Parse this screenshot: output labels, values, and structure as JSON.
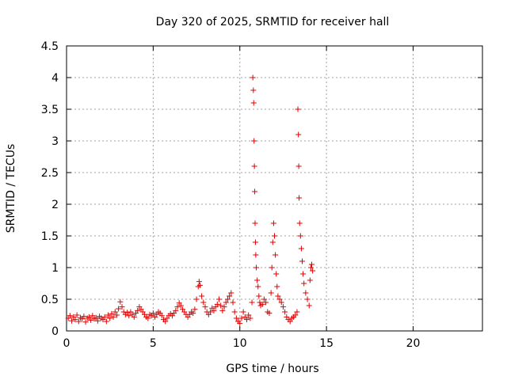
{
  "chart_data": {
    "type": "scatter",
    "title": "Day 320 of 2025, SRMTID for receiver hall",
    "xlabel": "GPS time / hours",
    "ylabel": "SRMTID / TECUs",
    "xlim": [
      0,
      24
    ],
    "ylim": [
      0,
      4.5
    ],
    "x_ticks": [
      0,
      5,
      10,
      15,
      20
    ],
    "x_tick_labels": [
      "0",
      "5",
      "10",
      "15",
      "20"
    ],
    "y_ticks": [
      0,
      0.5,
      1,
      1.5,
      2,
      2.5,
      3,
      3.5,
      4,
      4.5
    ],
    "y_tick_labels": [
      "0",
      "0.5",
      "1",
      "1.5",
      "2",
      "2.5",
      "3",
      "3.5",
      "4",
      "4.5"
    ],
    "grid": true,
    "marker": "+",
    "color": "#e00000",
    "series": [
      {
        "name": "SRMTID",
        "points": [
          [
            0.1,
            0.2
          ],
          [
            0.2,
            0.24
          ],
          [
            0.3,
            0.16
          ],
          [
            0.4,
            0.22
          ],
          [
            0.5,
            0.18
          ],
          [
            0.6,
            0.25
          ],
          [
            0.7,
            0.15
          ],
          [
            0.8,
            0.21
          ],
          [
            0.9,
            0.19
          ],
          [
            1.0,
            0.23
          ],
          [
            1.1,
            0.14
          ],
          [
            1.2,
            0.2
          ],
          [
            1.3,
            0.22
          ],
          [
            1.4,
            0.17
          ],
          [
            1.5,
            0.24
          ],
          [
            1.6,
            0.19
          ],
          [
            1.7,
            0.21
          ],
          [
            1.8,
            0.16
          ],
          [
            1.9,
            0.23
          ],
          [
            2.0,
            0.2
          ],
          [
            2.1,
            0.18
          ],
          [
            2.2,
            0.22
          ],
          [
            2.3,
            0.15
          ],
          [
            2.4,
            0.25
          ],
          [
            2.5,
            0.2
          ],
          [
            2.6,
            0.27
          ],
          [
            2.7,
            0.22
          ],
          [
            2.8,
            0.3
          ],
          [
            2.9,
            0.25
          ],
          [
            3.0,
            0.35
          ],
          [
            3.1,
            0.46
          ],
          [
            3.2,
            0.38
          ],
          [
            3.3,
            0.3
          ],
          [
            3.4,
            0.26
          ],
          [
            3.5,
            0.29
          ],
          [
            3.6,
            0.24
          ],
          [
            3.7,
            0.3
          ],
          [
            3.8,
            0.26
          ],
          [
            3.9,
            0.22
          ],
          [
            4.0,
            0.28
          ],
          [
            4.1,
            0.32
          ],
          [
            4.2,
            0.38
          ],
          [
            4.3,
            0.34
          ],
          [
            4.4,
            0.3
          ],
          [
            4.5,
            0.26
          ],
          [
            4.6,
            0.22
          ],
          [
            4.7,
            0.2
          ],
          [
            4.8,
            0.26
          ],
          [
            4.9,
            0.24
          ],
          [
            5.0,
            0.28
          ],
          [
            5.1,
            0.22
          ],
          [
            5.2,
            0.26
          ],
          [
            5.3,
            0.3
          ],
          [
            5.4,
            0.28
          ],
          [
            5.5,
            0.24
          ],
          [
            5.6,
            0.18
          ],
          [
            5.7,
            0.15
          ],
          [
            5.8,
            0.2
          ],
          [
            5.9,
            0.24
          ],
          [
            6.0,
            0.27
          ],
          [
            6.1,
            0.24
          ],
          [
            6.2,
            0.28
          ],
          [
            6.3,
            0.32
          ],
          [
            6.4,
            0.38
          ],
          [
            6.5,
            0.44
          ],
          [
            6.6,
            0.4
          ],
          [
            6.7,
            0.34
          ],
          [
            6.8,
            0.3
          ],
          [
            6.9,
            0.26
          ],
          [
            7.0,
            0.22
          ],
          [
            7.1,
            0.26
          ],
          [
            7.2,
            0.3
          ],
          [
            7.3,
            0.28
          ],
          [
            7.4,
            0.34
          ],
          [
            7.5,
            0.5
          ],
          [
            7.6,
            0.7
          ],
          [
            7.65,
            0.78
          ],
          [
            7.7,
            0.72
          ],
          [
            7.8,
            0.55
          ],
          [
            7.9,
            0.45
          ],
          [
            8.0,
            0.38
          ],
          [
            8.1,
            0.3
          ],
          [
            8.2,
            0.26
          ],
          [
            8.3,
            0.3
          ],
          [
            8.4,
            0.36
          ],
          [
            8.5,
            0.32
          ],
          [
            8.6,
            0.38
          ],
          [
            8.7,
            0.42
          ],
          [
            8.8,
            0.5
          ],
          [
            8.9,
            0.4
          ],
          [
            9.0,
            0.32
          ],
          [
            9.1,
            0.38
          ],
          [
            9.2,
            0.45
          ],
          [
            9.3,
            0.5
          ],
          [
            9.4,
            0.55
          ],
          [
            9.5,
            0.6
          ],
          [
            9.6,
            0.45
          ],
          [
            9.7,
            0.3
          ],
          [
            9.8,
            0.2
          ],
          [
            9.9,
            0.15
          ],
          [
            10.0,
            0.12
          ],
          [
            10.1,
            0.2
          ],
          [
            10.2,
            0.3
          ],
          [
            10.3,
            0.22
          ],
          [
            10.4,
            0.18
          ],
          [
            10.5,
            0.25
          ],
          [
            10.6,
            0.2
          ],
          [
            10.7,
            0.45
          ],
          [
            10.75,
            4.0
          ],
          [
            10.78,
            3.8
          ],
          [
            10.8,
            3.6
          ],
          [
            10.82,
            3.0
          ],
          [
            10.84,
            2.6
          ],
          [
            10.86,
            2.2
          ],
          [
            10.88,
            1.7
          ],
          [
            10.9,
            1.4
          ],
          [
            10.92,
            1.2
          ],
          [
            10.95,
            1.0
          ],
          [
            11.0,
            0.8
          ],
          [
            11.05,
            0.7
          ],
          [
            11.1,
            0.55
          ],
          [
            11.15,
            0.45
          ],
          [
            11.2,
            0.4
          ],
          [
            11.3,
            0.42
          ],
          [
            11.4,
            0.5
          ],
          [
            11.5,
            0.45
          ],
          [
            11.6,
            0.3
          ],
          [
            11.7,
            0.28
          ],
          [
            11.8,
            0.6
          ],
          [
            11.85,
            1.0
          ],
          [
            11.9,
            1.4
          ],
          [
            11.95,
            1.7
          ],
          [
            12.0,
            1.5
          ],
          [
            12.05,
            1.2
          ],
          [
            12.1,
            0.9
          ],
          [
            12.15,
            0.7
          ],
          [
            12.2,
            0.55
          ],
          [
            12.3,
            0.5
          ],
          [
            12.4,
            0.45
          ],
          [
            12.5,
            0.38
          ],
          [
            12.6,
            0.3
          ],
          [
            12.7,
            0.22
          ],
          [
            12.8,
            0.18
          ],
          [
            12.9,
            0.15
          ],
          [
            13.0,
            0.2
          ],
          [
            13.1,
            0.22
          ],
          [
            13.2,
            0.25
          ],
          [
            13.3,
            0.3
          ],
          [
            13.35,
            3.5
          ],
          [
            13.38,
            3.1
          ],
          [
            13.4,
            2.6
          ],
          [
            13.42,
            2.1
          ],
          [
            13.45,
            1.7
          ],
          [
            13.5,
            1.5
          ],
          [
            13.55,
            1.3
          ],
          [
            13.6,
            1.1
          ],
          [
            13.65,
            0.9
          ],
          [
            13.7,
            0.75
          ],
          [
            13.8,
            0.6
          ],
          [
            13.9,
            0.5
          ],
          [
            14.0,
            0.4
          ],
          [
            14.05,
            0.8
          ],
          [
            14.1,
            1.0
          ],
          [
            14.15,
            1.05
          ],
          [
            14.2,
            0.95
          ]
        ]
      }
    ]
  }
}
